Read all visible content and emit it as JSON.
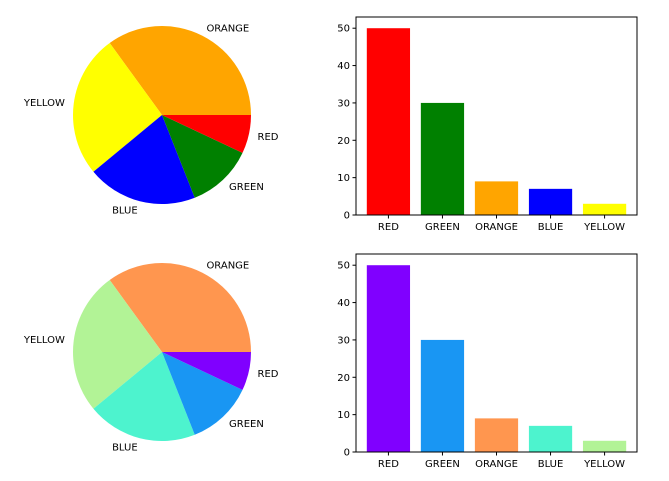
{
  "chart_data": [
    {
      "type": "pie",
      "title": "",
      "categories": [
        "RED",
        "GREEN",
        "ORANGE",
        "BLUE",
        "YELLOW"
      ],
      "display_order": [
        "ORANGE",
        "YELLOW",
        "BLUE",
        "GREEN",
        "RED"
      ],
      "values": [
        7,
        12,
        35,
        20,
        26
      ],
      "colors": {
        "RED": "#ff0000",
        "GREEN": "#008000",
        "ORANGE": "#ffa500",
        "BLUE": "#0000ff",
        "YELLOW": "#ffff00"
      }
    },
    {
      "type": "bar",
      "title": "",
      "categories": [
        "RED",
        "GREEN",
        "ORANGE",
        "BLUE",
        "YELLOW"
      ],
      "values": [
        50,
        30,
        9,
        7,
        3
      ],
      "colors": [
        "#ff0000",
        "#008000",
        "#ffa500",
        "#0000ff",
        "#ffff00"
      ],
      "ylim": [
        0,
        53
      ],
      "yticks": [
        0,
        10,
        20,
        30,
        40,
        50
      ]
    },
    {
      "type": "pie",
      "title": "",
      "categories": [
        "RED",
        "GREEN",
        "ORANGE",
        "BLUE",
        "YELLOW"
      ],
      "display_order": [
        "ORANGE",
        "YELLOW",
        "BLUE",
        "GREEN",
        "RED"
      ],
      "values": [
        7,
        12,
        35,
        20,
        26
      ],
      "colors": {
        "RED": "#8000ff",
        "GREEN": "#1996f3",
        "ORANGE": "#ff964f",
        "BLUE": "#4df3ce",
        "YELLOW": "#b2f396"
      }
    },
    {
      "type": "bar",
      "title": "",
      "categories": [
        "RED",
        "GREEN",
        "ORANGE",
        "BLUE",
        "YELLOW"
      ],
      "values": [
        50,
        30,
        9,
        7,
        3
      ],
      "colors": [
        "#8000ff",
        "#1996f3",
        "#ff964f",
        "#4df3ce",
        "#b2f396"
      ],
      "ylim": [
        0,
        53
      ],
      "yticks": [
        0,
        10,
        20,
        30,
        40,
        50
      ]
    }
  ]
}
